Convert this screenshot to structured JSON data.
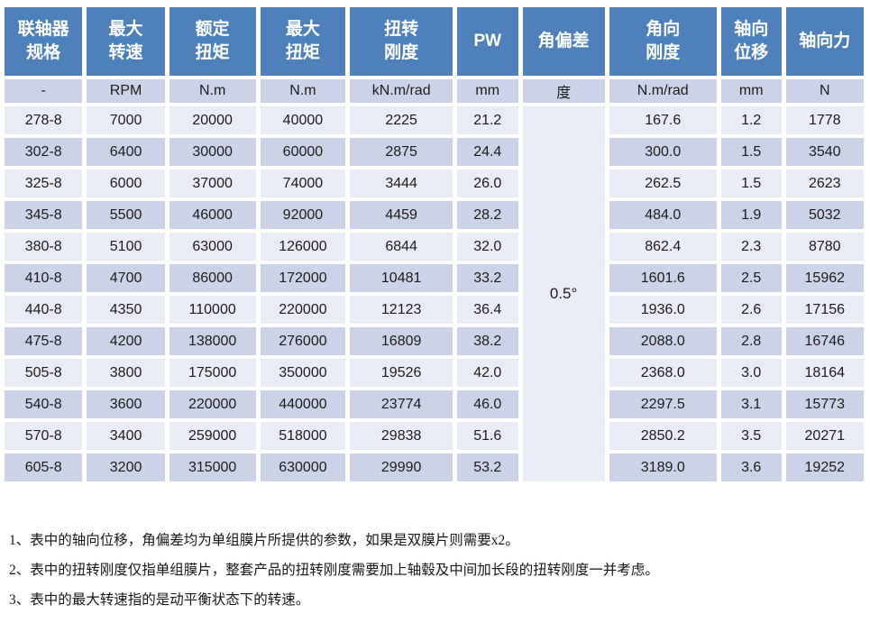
{
  "colors": {
    "header_bg": "#4e81ba",
    "row_light": "#e9ebf5",
    "row_dark": "#ccd3e8",
    "header_text": "#ffffff",
    "body_text": "#1c1c1c"
  },
  "table": {
    "columns": [
      {
        "key": "spec",
        "label": "联轴器\n规格",
        "unit": "-"
      },
      {
        "key": "max_speed",
        "label": "最大\n转速",
        "unit": "RPM"
      },
      {
        "key": "rated_torque",
        "label": "额定\n扭矩",
        "unit": "N.m"
      },
      {
        "key": "max_torque",
        "label": "最大\n扭矩",
        "unit": "N.m"
      },
      {
        "key": "torsional_stiffness",
        "label": "扭转\n刚度",
        "unit": "kN.m/rad"
      },
      {
        "key": "pw",
        "label": "PW",
        "unit": "mm"
      },
      {
        "key": "angular_deviation",
        "label": "角偏差",
        "unit": "度"
      },
      {
        "key": "angular_stiffness",
        "label": "角向\n刚度",
        "unit": "N.m/rad"
      },
      {
        "key": "axial_displacement",
        "label": "轴向\n位移",
        "unit": "mm"
      },
      {
        "key": "axial_force",
        "label": "轴向力",
        "unit": "N"
      }
    ],
    "angular_deviation_merged": "0.5°",
    "rows": [
      {
        "spec": "278-8",
        "max_speed": "7000",
        "rated_torque": "20000",
        "max_torque": "40000",
        "torsional_stiffness": "2225",
        "pw": "21.2",
        "angular_stiffness": "167.6",
        "axial_displacement": "1.2",
        "axial_force": "1778"
      },
      {
        "spec": "302-8",
        "max_speed": "6400",
        "rated_torque": "30000",
        "max_torque": "60000",
        "torsional_stiffness": "2875",
        "pw": "24.4",
        "angular_stiffness": "300.0",
        "axial_displacement": "1.5",
        "axial_force": "3540"
      },
      {
        "spec": "325-8",
        "max_speed": "6000",
        "rated_torque": "37000",
        "max_torque": "74000",
        "torsional_stiffness": "3444",
        "pw": "26.0",
        "angular_stiffness": "262.5",
        "axial_displacement": "1.5",
        "axial_force": "2623"
      },
      {
        "spec": "345-8",
        "max_speed": "5500",
        "rated_torque": "46000",
        "max_torque": "92000",
        "torsional_stiffness": "4459",
        "pw": "28.2",
        "angular_stiffness": "484.0",
        "axial_displacement": "1.9",
        "axial_force": "5032"
      },
      {
        "spec": "380-8",
        "max_speed": "5100",
        "rated_torque": "63000",
        "max_torque": "126000",
        "torsional_stiffness": "6844",
        "pw": "32.0",
        "angular_stiffness": "862.4",
        "axial_displacement": "2.3",
        "axial_force": "8780"
      },
      {
        "spec": "410-8",
        "max_speed": "4700",
        "rated_torque": "86000",
        "max_torque": "172000",
        "torsional_stiffness": "10481",
        "pw": "33.2",
        "angular_stiffness": "1601.6",
        "axial_displacement": "2.5",
        "axial_force": "15962"
      },
      {
        "spec": "440-8",
        "max_speed": "4350",
        "rated_torque": "110000",
        "max_torque": "220000",
        "torsional_stiffness": "12123",
        "pw": "36.4",
        "angular_stiffness": "1936.0",
        "axial_displacement": "2.6",
        "axial_force": "17156"
      },
      {
        "spec": "475-8",
        "max_speed": "4200",
        "rated_torque": "138000",
        "max_torque": "276000",
        "torsional_stiffness": "16809",
        "pw": "38.2",
        "angular_stiffness": "2088.0",
        "axial_displacement": "2.8",
        "axial_force": "16746"
      },
      {
        "spec": "505-8",
        "max_speed": "3800",
        "rated_torque": "175000",
        "max_torque": "350000",
        "torsional_stiffness": "19526",
        "pw": "42.0",
        "angular_stiffness": "2368.0",
        "axial_displacement": "3.0",
        "axial_force": "18164"
      },
      {
        "spec": "540-8",
        "max_speed": "3600",
        "rated_torque": "220000",
        "max_torque": "440000",
        "torsional_stiffness": "23774",
        "pw": "46.0",
        "angular_stiffness": "2297.5",
        "axial_displacement": "3.1",
        "axial_force": "15773"
      },
      {
        "spec": "570-8",
        "max_speed": "3400",
        "rated_torque": "259000",
        "max_torque": "518000",
        "torsional_stiffness": "29838",
        "pw": "51.6",
        "angular_stiffness": "2850.2",
        "axial_displacement": "3.5",
        "axial_force": "20271"
      },
      {
        "spec": "605-8",
        "max_speed": "3200",
        "rated_torque": "315000",
        "max_torque": "630000",
        "torsional_stiffness": "29990",
        "pw": "53.2",
        "angular_stiffness": "3189.0",
        "axial_displacement": "3.6",
        "axial_force": "19252"
      }
    ]
  },
  "footnotes": [
    "1、表中的轴向位移，角偏差均为单组膜片所提供的参数，如果是双膜片则需要x2。",
    "2、表中的扭转刚度仅指单组膜片，整套产品的扭转刚度需要加上轴毂及中间加长段的扭转刚度一并考虑。",
    "3、表中的最大转速指的是动平衡状态下的转速。"
  ]
}
